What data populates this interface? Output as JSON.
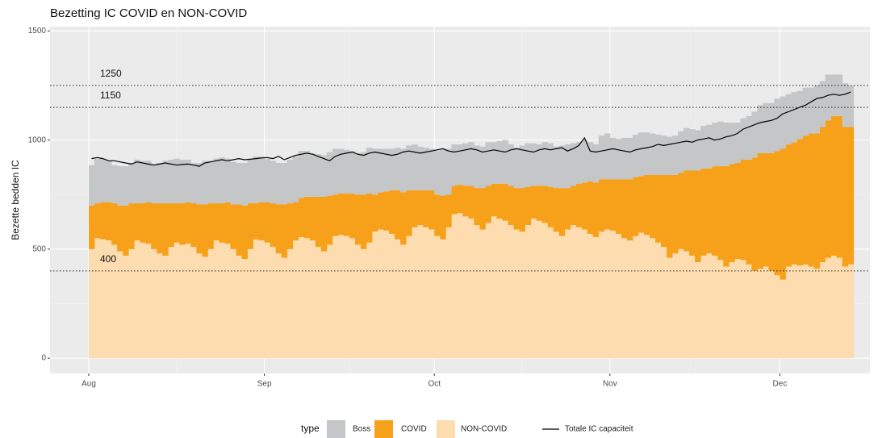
{
  "chart_data": {
    "type": "stacked-step-area",
    "title": "Bezetting IC COVID en NON-COVID",
    "y_label": "Bezette bedden IC",
    "legend_title": "type",
    "categories": [
      "Aug",
      null,
      null,
      null,
      null,
      null,
      null,
      null,
      null,
      null,
      null,
      null,
      null,
      null,
      null,
      null,
      null,
      null,
      null,
      null,
      null,
      null,
      null,
      null,
      null,
      null,
      null,
      null,
      null,
      null,
      null,
      "Sep",
      null,
      null,
      null,
      null,
      null,
      null,
      null,
      null,
      null,
      null,
      null,
      null,
      null,
      null,
      null,
      null,
      null,
      null,
      null,
      null,
      null,
      null,
      null,
      null,
      null,
      null,
      null,
      null,
      null,
      "Oct",
      null,
      null,
      null,
      null,
      null,
      null,
      null,
      null,
      null,
      null,
      null,
      null,
      null,
      null,
      null,
      null,
      null,
      null,
      null,
      null,
      null,
      null,
      null,
      null,
      null,
      null,
      null,
      null,
      null,
      null,
      "Nov",
      null,
      null,
      null,
      null,
      null,
      null,
      null,
      null,
      null,
      null,
      null,
      null,
      null,
      null,
      null,
      null,
      null,
      null,
      null,
      null,
      null,
      null,
      null,
      null,
      null,
      null,
      null,
      null,
      null,
      "Dec",
      null,
      null,
      null,
      null,
      null,
      null,
      null,
      null,
      null,
      null,
      null,
      null
    ],
    "series": [
      {
        "name": "NON-COVID",
        "color": "#fddcb0",
        "values": [
          500,
          550,
          545,
          540,
          520,
          490,
          470,
          500,
          540,
          530,
          525,
          500,
          480,
          470,
          510,
          530,
          520,
          525,
          510,
          480,
          465,
          500,
          540,
          530,
          525,
          500,
          470,
          455,
          500,
          545,
          540,
          530,
          510,
          480,
          460,
          500,
          540,
          555,
          550,
          540,
          510,
          490,
          520,
          560,
          565,
          560,
          550,
          520,
          500,
          530,
          580,
          590,
          585,
          570,
          545,
          520,
          560,
          600,
          610,
          600,
          590,
          560,
          545,
          600,
          660,
          665,
          650,
          640,
          610,
          590,
          620,
          650,
          640,
          630,
          610,
          590,
          580,
          610,
          640,
          630,
          620,
          600,
          580,
          560,
          590,
          610,
          600,
          590,
          570,
          555,
          580,
          590,
          585,
          570,
          550,
          540,
          560,
          575,
          565,
          550,
          530,
          510,
          460,
          480,
          500,
          490,
          470,
          440,
          470,
          480,
          470,
          450,
          420,
          440,
          455,
          450,
          430,
          400,
          410,
          420,
          400,
          380,
          360,
          420,
          430,
          425,
          430,
          420,
          410,
          440,
          460,
          470,
          460,
          420,
          430
        ]
      },
      {
        "name": "COVID",
        "color": "#f7a11a",
        "values": [
          200,
          160,
          170,
          175,
          190,
          210,
          230,
          210,
          170,
          180,
          190,
          210,
          230,
          240,
          200,
          180,
          190,
          190,
          200,
          225,
          240,
          210,
          170,
          180,
          190,
          205,
          235,
          245,
          210,
          165,
          175,
          185,
          200,
          225,
          245,
          210,
          175,
          180,
          190,
          200,
          230,
          250,
          225,
          190,
          190,
          195,
          205,
          230,
          250,
          225,
          170,
          170,
          180,
          200,
          225,
          240,
          210,
          170,
          160,
          170,
          180,
          190,
          200,
          150,
          130,
          130,
          140,
          150,
          170,
          190,
          170,
          150,
          160,
          170,
          180,
          190,
          200,
          175,
          150,
          160,
          170,
          185,
          200,
          220,
          190,
          180,
          200,
          215,
          240,
          250,
          240,
          230,
          235,
          250,
          270,
          280,
          270,
          260,
          275,
          290,
          310,
          330,
          380,
          360,
          350,
          370,
          390,
          420,
          400,
          390,
          410,
          430,
          460,
          450,
          440,
          460,
          480,
          520,
          530,
          520,
          540,
          570,
          600,
          560,
          560,
          580,
          590,
          610,
          620,
          620,
          630,
          640,
          650,
          640,
          630
        ]
      },
      {
        "name": "Boss",
        "color": "#c4c6c7",
        "values": [
          185,
          205,
          200,
          190,
          175,
          180,
          180,
          185,
          200,
          195,
          190,
          180,
          185,
          195,
          200,
          205,
          200,
          195,
          185,
          190,
          200,
          195,
          205,
          210,
          200,
          195,
          190,
          195,
          205,
          215,
          210,
          200,
          195,
          190,
          190,
          200,
          210,
          215,
          210,
          200,
          195,
          190,
          200,
          210,
          205,
          200,
          195,
          190,
          195,
          210,
          210,
          200,
          195,
          190,
          195,
          200,
          205,
          210,
          200,
          195,
          190,
          200,
          210,
          210,
          190,
          185,
          195,
          200,
          195,
          190,
          200,
          190,
          195,
          200,
          190,
          185,
          195,
          200,
          195,
          190,
          200,
          200,
          190,
          195,
          200,
          195,
          190,
          195,
          180,
          175,
          200,
          210,
          190,
          185,
          190,
          190,
          195,
          200,
          195,
          190,
          185,
          180,
          175,
          180,
          190,
          195,
          190,
          185,
          195,
          200,
          200,
          205,
          200,
          190,
          185,
          190,
          200,
          210,
          220,
          230,
          230,
          240,
          240,
          230,
          230,
          220,
          220,
          210,
          220,
          210,
          210,
          190,
          190,
          200,
          190
        ]
      }
    ],
    "lines": [
      {
        "name": "Totale IC capaciteit",
        "color": "#000000",
        "values": [
          915,
          920,
          915,
          905,
          905,
          900,
          895,
          890,
          900,
          895,
          890,
          885,
          890,
          895,
          890,
          885,
          888,
          890,
          885,
          880,
          895,
          900,
          905,
          910,
          905,
          910,
          915,
          910,
          912,
          915,
          918,
          920,
          915,
          925,
          910,
          920,
          930,
          935,
          940,
          935,
          925,
          915,
          905,
          925,
          935,
          940,
          945,
          935,
          930,
          940,
          945,
          940,
          935,
          930,
          935,
          945,
          950,
          945,
          940,
          945,
          950,
          955,
          960,
          950,
          945,
          950,
          955,
          960,
          955,
          945,
          950,
          955,
          950,
          945,
          955,
          960,
          955,
          950,
          945,
          955,
          960,
          955,
          960,
          965,
          950,
          960,
          975,
          1010,
          950,
          945,
          950,
          955,
          960,
          955,
          950,
          945,
          955,
          960,
          965,
          970,
          980,
          975,
          980,
          985,
          990,
          995,
          990,
          1000,
          1005,
          1010,
          1000,
          1005,
          1015,
          1020,
          1030,
          1050,
          1060,
          1070,
          1080,
          1085,
          1090,
          1100,
          1120,
          1130,
          1140,
          1150,
          1160,
          1175,
          1190,
          1195,
          1205,
          1210,
          1205,
          1210,
          1220
        ]
      }
    ],
    "hlines": [
      1250,
      1150,
      400
    ],
    "ylim": [
      -70,
      1520
    ],
    "yticks": [
      0,
      500,
      1000,
      1500
    ],
    "grid": true
  }
}
